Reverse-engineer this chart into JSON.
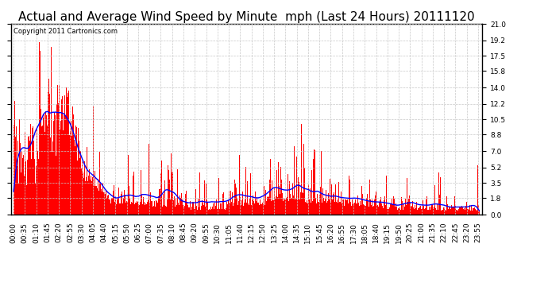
{
  "title": "Actual and Average Wind Speed by Minute  mph (Last 24 Hours) 20111120",
  "copyright": "Copyright 2011 Cartronics.com",
  "yticks": [
    0.0,
    1.8,
    3.5,
    5.2,
    7.0,
    8.8,
    10.5,
    12.2,
    14.0,
    15.8,
    17.5,
    19.2,
    21.0
  ],
  "ymax": 21.0,
  "ymin": 0.0,
  "bar_color": "#ff0000",
  "line_color": "#0000ff",
  "bg_color": "#ffffff",
  "grid_color": "#c8c8c8",
  "title_fontsize": 11,
  "copyright_fontsize": 6,
  "tick_fontsize": 6.5,
  "xlabel_rotation": 90,
  "total_minutes": 1440,
  "tick_step": 35,
  "figwidth": 6.9,
  "figheight": 3.75,
  "dpi": 100
}
